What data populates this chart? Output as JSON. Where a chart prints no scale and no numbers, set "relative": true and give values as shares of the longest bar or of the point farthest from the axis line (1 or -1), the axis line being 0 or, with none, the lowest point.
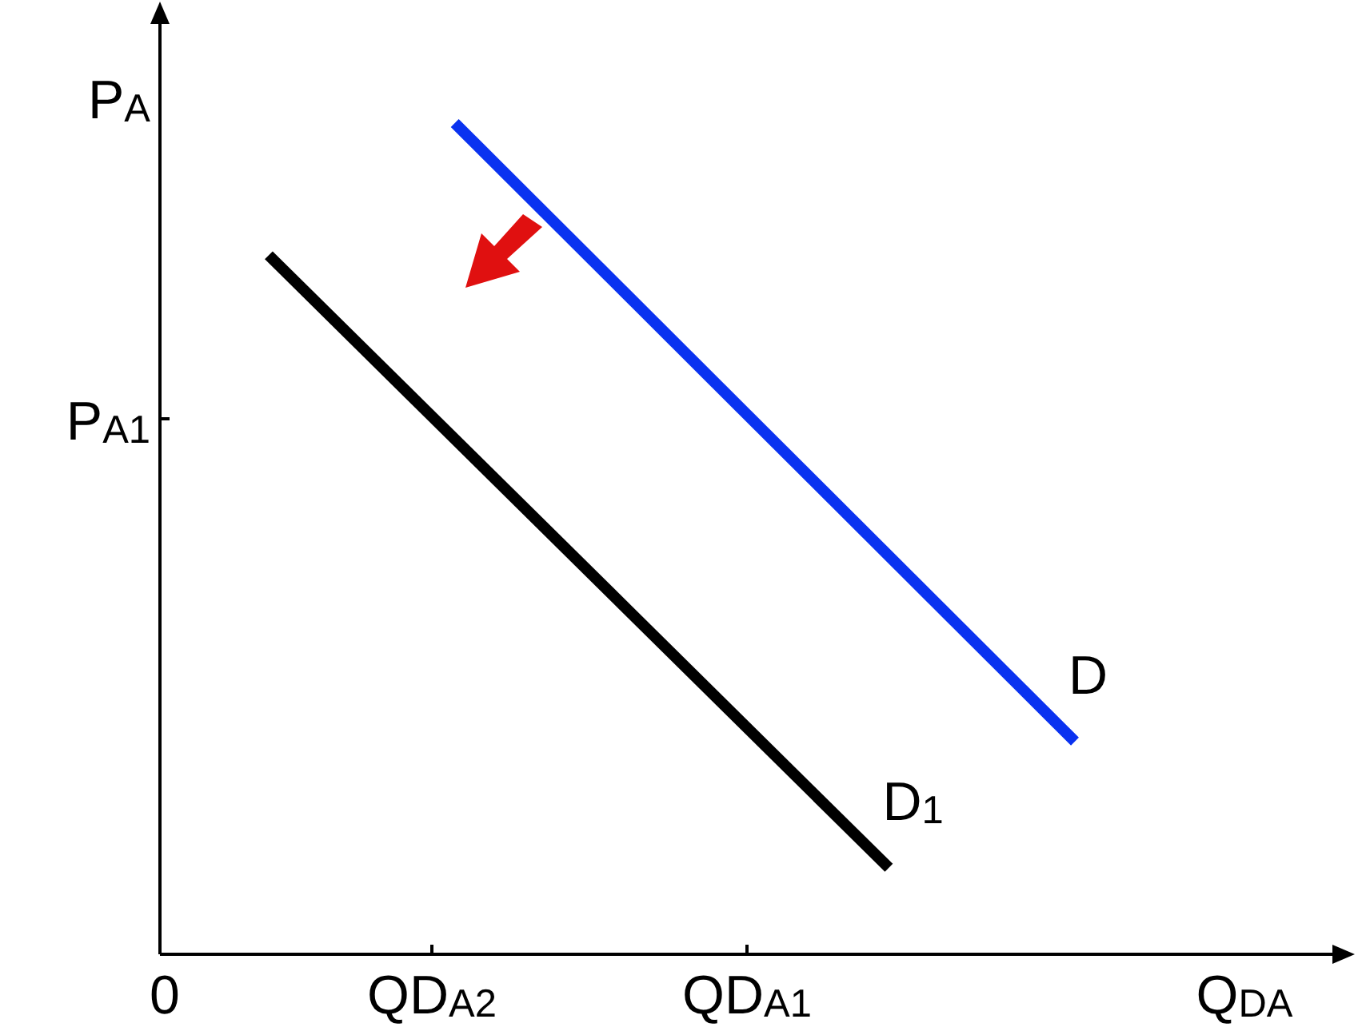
{
  "chart_data": {
    "type": "line",
    "relative": true,
    "xlabel": "Q$_{DA}$",
    "ylabel": "P$_{A}$",
    "annotations": [
      "0",
      "QD$_{A2}$",
      "QD$_{A1}$",
      "P$_{A1}$"
    ],
    "categories": [
      null,
      null,
      null,
      null,
      null,
      null,
      null,
      null,
      null,
      null,
      null,
      null,
      null,
      null
    ],
    "series": [
      {
        "name": "D",
        "color": "#0a32f0",
        "values": [
          null,
          null,
          null,
          1,
          null,
          null,
          null,
          null,
          null,
          null,
          null,
          null,
          null,
          0.256
        ]
      },
      {
        "name": "D$_{1}$",
        "color": "#000000",
        "values": [
          0.841,
          null,
          null,
          null,
          null,
          null,
          null,
          null,
          null,
          null,
          0.104,
          null,
          null,
          null
        ]
      }
    ],
    "legend": false,
    "marker": "none",
    "line_style": "solid"
  }
}
